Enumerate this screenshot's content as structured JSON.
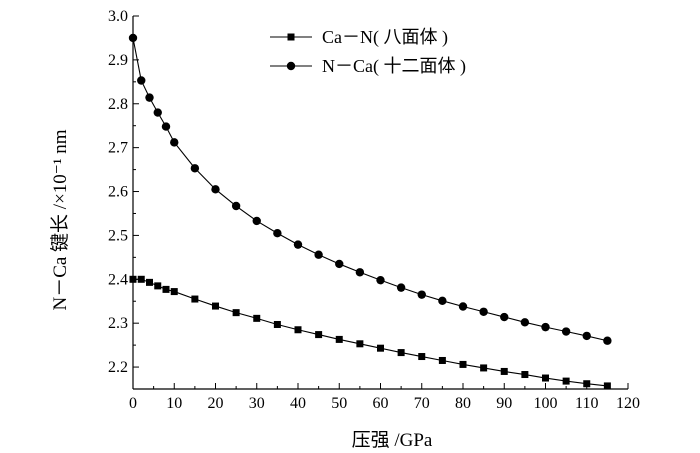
{
  "chart_data": {
    "type": "line",
    "title": "",
    "xlabel": "压强 /GPa",
    "ylabel": "N－Ca 键长 /×10⁻¹ nm",
    "xlim": [
      0,
      120
    ],
    "ylim": [
      2.15,
      3.0
    ],
    "x_ticks": [
      0,
      10,
      20,
      30,
      40,
      50,
      60,
      70,
      80,
      90,
      100,
      110,
      120
    ],
    "x_tick_labels": [
      "0",
      "10",
      "20",
      "30",
      "40",
      "50",
      "60",
      "70",
      "80",
      "90",
      "100",
      "110",
      "120"
    ],
    "y_ticks": [
      2.2,
      2.3,
      2.4,
      2.5,
      2.6,
      2.7,
      2.8,
      2.9,
      3.0
    ],
    "y_tick_labels": [
      "2.2",
      "2.3",
      "2.4",
      "2.5",
      "2.6",
      "2.7",
      "2.8",
      "2.9",
      "3.0"
    ],
    "grid": false,
    "legend_position": "top-center",
    "series": [
      {
        "name": "Ca－N( 八面体 )",
        "marker": "square",
        "color": "#000000",
        "x": [
          0,
          2,
          4,
          6,
          8,
          10,
          15,
          20,
          25,
          30,
          35,
          40,
          45,
          50,
          55,
          60,
          65,
          70,
          75,
          80,
          85,
          90,
          95,
          100,
          105,
          110,
          115
        ],
        "y": [
          2.4,
          2.4,
          2.393,
          2.385,
          2.377,
          2.372,
          2.355,
          2.339,
          2.324,
          2.311,
          2.297,
          2.285,
          2.274,
          2.263,
          2.253,
          2.243,
          2.233,
          2.224,
          2.215,
          2.206,
          2.198,
          2.19,
          2.183,
          2.175,
          2.168,
          2.162,
          2.157
        ]
      },
      {
        "name": "N－Ca( 十二面体 )",
        "marker": "circle",
        "color": "#000000",
        "x": [
          0,
          2,
          4,
          6,
          8,
          10,
          15,
          20,
          25,
          30,
          35,
          40,
          45,
          50,
          55,
          60,
          65,
          70,
          75,
          80,
          85,
          90,
          95,
          100,
          105,
          110,
          115
        ],
        "y": [
          2.95,
          2.853,
          2.814,
          2.78,
          2.748,
          2.712,
          2.653,
          2.605,
          2.567,
          2.533,
          2.505,
          2.479,
          2.456,
          2.435,
          2.416,
          2.398,
          2.381,
          2.365,
          2.351,
          2.338,
          2.326,
          2.314,
          2.302,
          2.291,
          2.281,
          2.271,
          2.26
        ]
      }
    ]
  }
}
